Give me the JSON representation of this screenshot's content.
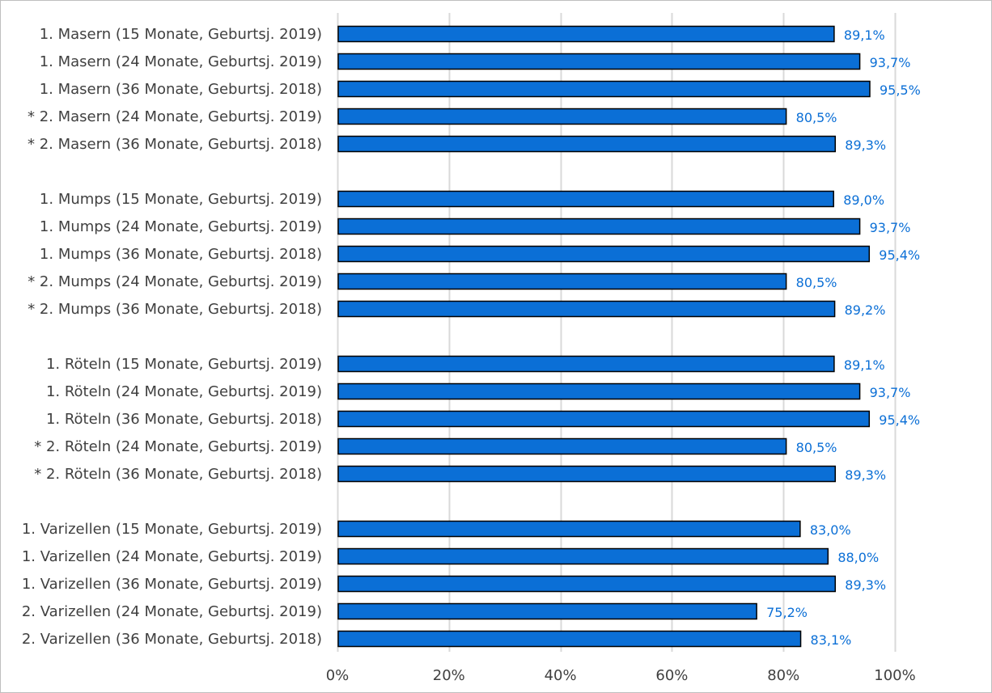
{
  "chart_data": {
    "type": "bar",
    "orientation": "horizontal",
    "title": "",
    "xlabel": "",
    "ylabel": "",
    "xlim": [
      0,
      100
    ],
    "grid": true,
    "legend": "none",
    "value_format": "percent-comma-1dp",
    "colors": {
      "bar": "#0b6fd6",
      "bar_edge": "#000000",
      "value_label": "#0b6fd6",
      "grid": "#d9d9d9",
      "axis_text": "#404040"
    },
    "x_ticks": [
      "0%",
      "20%",
      "40%",
      "60%",
      "80%",
      "100%"
    ],
    "x_tick_values": [
      0,
      20,
      40,
      60,
      80,
      100
    ],
    "groups": [
      {
        "categories": [
          "1. Masern (15 Monate, Geburtsj. 2019)",
          "1. Masern (24 Monate, Geburtsj. 2019)",
          "1. Masern (36 Monate, Geburtsj. 2018)",
          "* 2. Masern (24 Monate, Geburtsj. 2019)",
          "* 2. Masern (36 Monate, Geburtsj. 2018)"
        ],
        "values": [
          89.1,
          93.7,
          95.5,
          80.5,
          89.3
        ],
        "labels": [
          "89,1%",
          "93,7%",
          "95,5%",
          "80,5%",
          "89,3%"
        ]
      },
      {
        "categories": [
          "1. Mumps (15 Monate, Geburtsj. 2019)",
          "1. Mumps (24 Monate, Geburtsj. 2019)",
          "1. Mumps (36 Monate, Geburtsj. 2018)",
          "* 2. Mumps (24 Monate, Geburtsj. 2019)",
          "* 2. Mumps (36 Monate, Geburtsj. 2018)"
        ],
        "values": [
          89.0,
          93.7,
          95.4,
          80.5,
          89.2
        ],
        "labels": [
          "89,0%",
          "93,7%",
          "95,4%",
          "80,5%",
          "89,2%"
        ]
      },
      {
        "categories": [
          "1. Röteln (15 Monate, Geburtsj. 2019)",
          "1. Röteln (24 Monate, Geburtsj. 2019)",
          "1. Röteln (36 Monate, Geburtsj. 2018)",
          "* 2. Röteln (24 Monate, Geburtsj. 2019)",
          "* 2. Röteln (36 Monate, Geburtsj. 2018)"
        ],
        "values": [
          89.1,
          93.7,
          95.4,
          80.5,
          89.3
        ],
        "labels": [
          "89,1%",
          "93,7%",
          "95,4%",
          "80,5%",
          "89,3%"
        ]
      },
      {
        "categories": [
          "1. Varizellen (15 Monate, Geburtsj. 2019)",
          "1. Varizellen (24 Monate, Geburtsj. 2019)",
          "1. Varizellen (36 Monate, Geburtsj. 2019)",
          "2. Varizellen (24 Monate, Geburtsj. 2019)",
          "2. Varizellen (36 Monate, Geburtsj. 2018)"
        ],
        "values": [
          83.0,
          88.0,
          89.3,
          75.2,
          83.1
        ],
        "labels": [
          "83,0%",
          "88,0%",
          "89,3%",
          "75,2%",
          "83,1%"
        ]
      }
    ]
  }
}
